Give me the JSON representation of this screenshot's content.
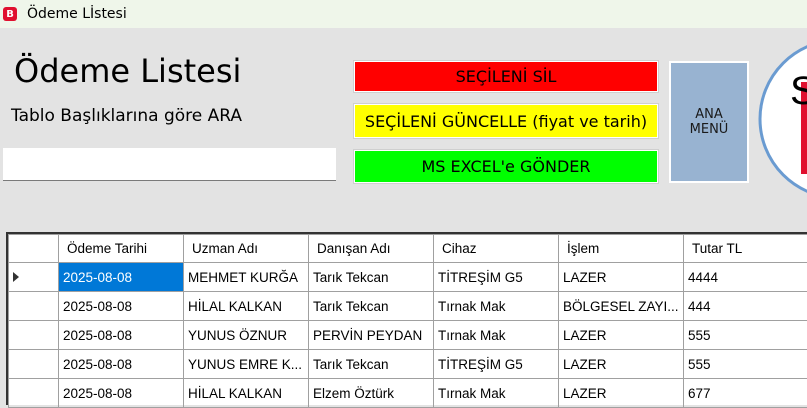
{
  "window": {
    "title": "Ödeme Lİstesi",
    "icon": "app-logo-icon"
  },
  "header": {
    "title": "Ödeme Listesi",
    "search_label": "Tablo Başlıklarına göre ARA",
    "search_value": ""
  },
  "buttons": {
    "delete": "SEÇİLENİ SİL",
    "update": "SEÇİLENİ GÜNCELLE (fiyat ve tarih)",
    "excel": "MS EXCEL'e GÖNDER",
    "main_menu": "ANA\nMENÜ"
  },
  "colors": {
    "delete": "#ff0000",
    "update": "#ffff00",
    "excel": "#00ff00",
    "main_menu": "#98b3d1",
    "selection": "#0078d7"
  },
  "logo": {
    "letter": "S"
  },
  "table": {
    "columns": [
      "Ödeme Tarihi",
      "Uzman Adı",
      "Danışan Adı",
      "Cihaz",
      "İşlem",
      "Tutar TL"
    ],
    "rows": [
      [
        "2025-08-08",
        "MEHMET KURĞA",
        "Tarık Tekcan",
        "TİTREŞİM G5",
        "LAZER",
        "4444"
      ],
      [
        "2025-08-08",
        "HİLAL KALKAN",
        "Tarık Tekcan",
        "Tırnak Mak",
        "BÖLGESEL ZAYI...",
        "444"
      ],
      [
        "2025-08-08",
        "YUNUS ÖZNUR",
        "PERVİN PEYDAN",
        "Tırnak Mak",
        "LAZER",
        "555"
      ],
      [
        "2025-08-08",
        "YUNUS EMRE K...",
        "Tarık Tekcan",
        "TİTREŞİM G5",
        "LAZER",
        "555"
      ],
      [
        "2025-08-08",
        "HİLAL KALKAN",
        "Elzem Öztürk",
        "Tırnak Mak",
        "LAZER",
        "677"
      ]
    ]
  }
}
